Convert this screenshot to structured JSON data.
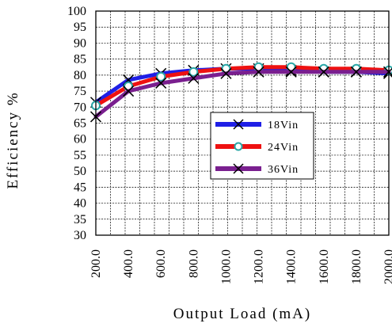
{
  "chart_data": {
    "type": "line",
    "xlabel": "Output Load (mA)",
    "ylabel": "Efficiency %",
    "x": [
      200.0,
      400.0,
      600.0,
      800.0,
      1000.0,
      1200.0,
      1400.0,
      1600.0,
      1800.0,
      2000.0
    ],
    "x_tick_labels": [
      "200.0",
      "400.0",
      "600.0",
      "800.0",
      "1000.0",
      "1200.0",
      "1400.0",
      "1600.0",
      "1800.0",
      "2000.0"
    ],
    "xlim": [
      200.0,
      2000.0
    ],
    "ylim": [
      30,
      100
    ],
    "y_ticks": [
      30,
      35,
      40,
      45,
      50,
      55,
      60,
      65,
      70,
      75,
      80,
      85,
      90,
      95,
      100
    ],
    "grid": true,
    "legend_position": "center-right",
    "series": [
      {
        "name": "18Vin",
        "color": "#1f1fe6",
        "marker": "x-cross",
        "values": [
          71.5,
          78.5,
          80.5,
          81.5,
          82.0,
          82.0,
          81.5,
          81.0,
          81.0,
          80.5
        ]
      },
      {
        "name": "24Vin",
        "color": "#ee1111",
        "marker": "circle",
        "values": [
          70.5,
          76.5,
          79.5,
          81.0,
          82.0,
          82.5,
          82.5,
          82.0,
          82.0,
          81.5
        ]
      },
      {
        "name": "36Vin",
        "color": "#7a1f8f",
        "marker": "x-cross",
        "values": [
          67.0,
          75.0,
          77.5,
          79.0,
          80.5,
          81.0,
          81.0,
          81.0,
          81.0,
          81.0
        ]
      }
    ]
  }
}
